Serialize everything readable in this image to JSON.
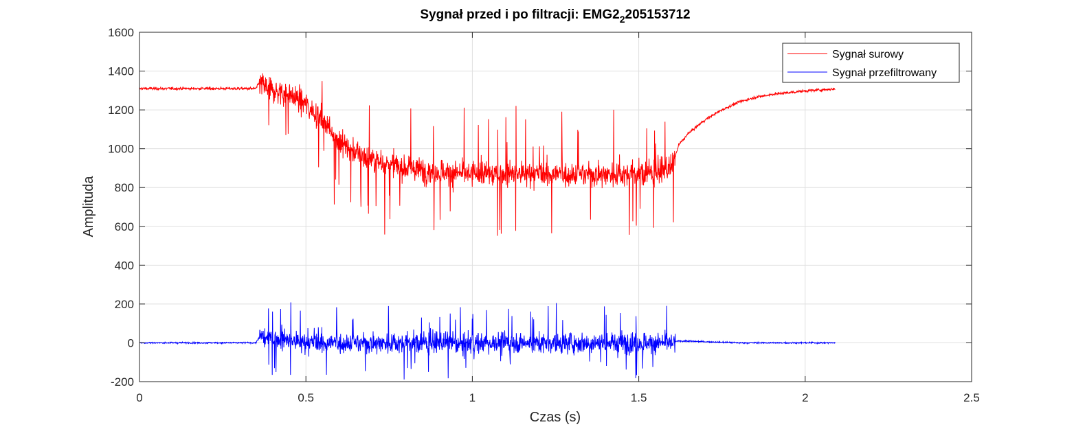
{
  "chart_data": {
    "type": "line",
    "title": "Sygnał przed i po filtracji: EMG2",
    "title_subscript": "2",
    "title_suffix": "205153712",
    "xlabel": "Czas (s)",
    "ylabel": "Amplituda",
    "xlim": [
      0,
      2.5
    ],
    "ylim": [
      -200,
      1600
    ],
    "xticks": [
      0,
      0.5,
      1,
      1.5,
      2,
      2.5
    ],
    "xtick_labels": [
      "0",
      "0.5",
      "1",
      "1.5",
      "2",
      "2.5"
    ],
    "yticks": [
      -200,
      0,
      200,
      400,
      600,
      800,
      1000,
      1200,
      1400,
      1600
    ],
    "ytick_labels": [
      "-200",
      "0",
      "200",
      "400",
      "600",
      "800",
      "1000",
      "1200",
      "1400",
      "1600"
    ],
    "grid": true,
    "legend_position": "top-right",
    "series": [
      {
        "name": "Sygnał surowy",
        "color": "#ff0000",
        "x": [
          0,
          0.1,
          0.2,
          0.3,
          0.35,
          0.36,
          0.4,
          0.45,
          0.5,
          0.55,
          0.6,
          0.65,
          0.7,
          0.8,
          0.9,
          1.0,
          1.1,
          1.2,
          1.3,
          1.4,
          1.5,
          1.55,
          1.6,
          1.62,
          1.65,
          1.7,
          1.75,
          1.8,
          1.85,
          1.9,
          2.0,
          2.09
        ],
        "y": [
          1310,
          1310,
          1310,
          1310,
          1310,
          1340,
          1300,
          1280,
          1230,
          1150,
          1040,
          980,
          940,
          900,
          880,
          870,
          870,
          870,
          870,
          870,
          870,
          880,
          900,
          1020,
          1080,
          1150,
          1200,
          1240,
          1265,
          1280,
          1298,
          1308
        ]
      },
      {
        "name": "Sygnał przefiltrowany",
        "color": "#0000ff",
        "x": [
          0,
          0.1,
          0.2,
          0.3,
          0.35,
          0.36,
          0.5,
          0.7,
          0.9,
          1.1,
          1.3,
          1.5,
          1.6,
          1.62,
          1.8,
          2.0,
          2.09
        ],
        "y": [
          0,
          0,
          0,
          0,
          0,
          30,
          0,
          0,
          0,
          0,
          0,
          0,
          0,
          10,
          0,
          0,
          0
        ]
      }
    ]
  }
}
